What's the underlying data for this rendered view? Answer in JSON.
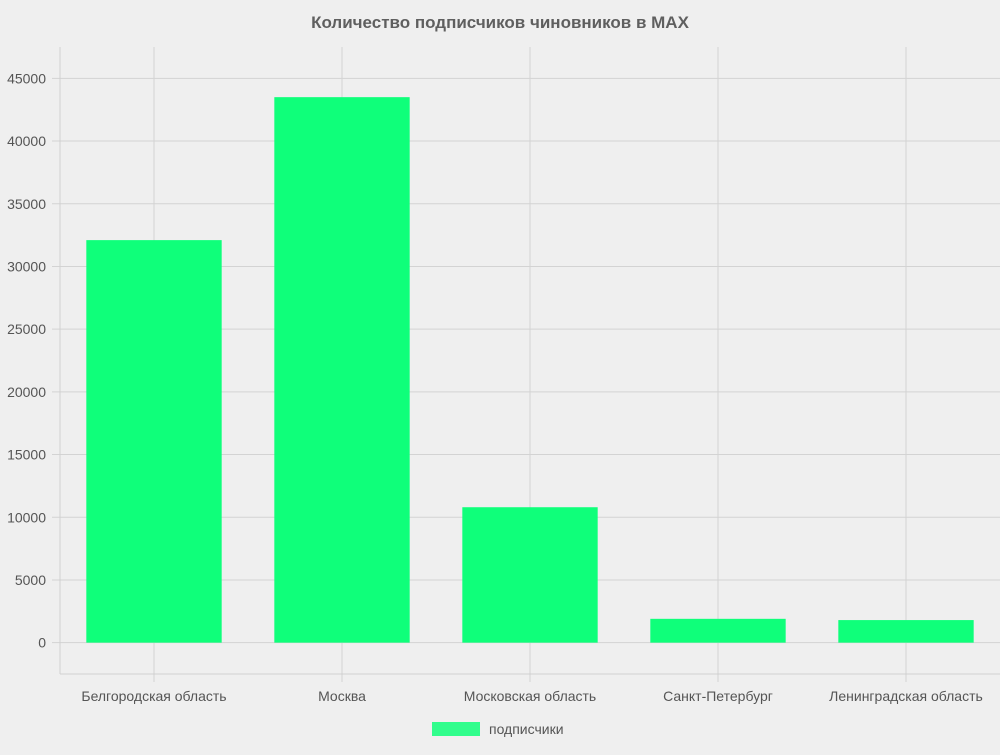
{
  "chart_data": {
    "type": "bar",
    "title": "Количество подписчиков чиновников в MAX",
    "xlabel": "",
    "ylabel": "",
    "categories": [
      "Белгородская область",
      "Москва",
      "Московская область",
      "Санкт-Петербург",
      "Ленинградская область"
    ],
    "series": [
      {
        "name": "подписчики",
        "values": [
          32100,
          43500,
          10800,
          1900,
          1800
        ],
        "color": "#0fff7a"
      }
    ],
    "ylim": [
      -2500,
      47500
    ],
    "yticks": [
      "0",
      "5000",
      "10000",
      "15000",
      "20000",
      "25000",
      "30000",
      "35000",
      "40000",
      "45000"
    ],
    "ytick_values": [
      0,
      5000,
      10000,
      15000,
      20000,
      25000,
      30000,
      35000,
      40000,
      45000
    ],
    "grid": true,
    "legend_position": "bottom"
  }
}
